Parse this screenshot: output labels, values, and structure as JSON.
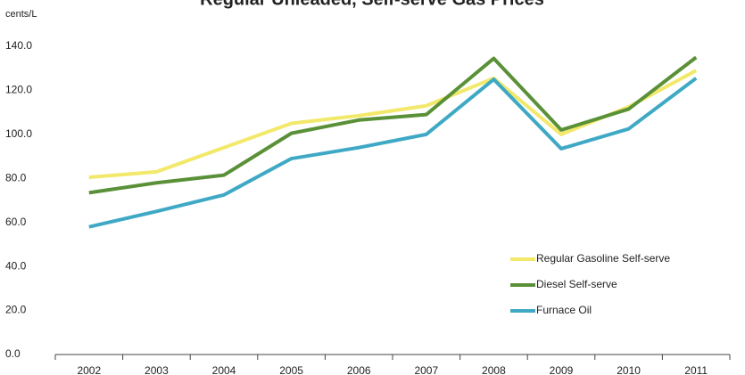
{
  "chart_data": {
    "type": "line",
    "title": "Regular Unleaded, Self-serve Gas Prices",
    "y_label": "cents/L",
    "categories": [
      "2002",
      "2003",
      "2004",
      "2005",
      "2006",
      "2007",
      "2008",
      "2009",
      "2010",
      "2011"
    ],
    "series": [
      {
        "name": "Regular Gasoline Self-serve",
        "color": "#f2e86a",
        "values": [
          80.5,
          83.0,
          94.0,
          105.0,
          108.5,
          113.0,
          125.5,
          100.0,
          112.5,
          129.0
        ]
      },
      {
        "name": "Diesel Self-serve",
        "color": "#5a9138",
        "values": [
          73.5,
          78.0,
          81.5,
          100.5,
          106.5,
          109.0,
          134.5,
          102.0,
          111.5,
          135.0
        ]
      },
      {
        "name": "Furnace Oil",
        "color": "#3fa9c5",
        "values": [
          58.0,
          65.0,
          72.5,
          89.0,
          94.0,
          100.0,
          125.0,
          93.5,
          102.5,
          125.5
        ]
      }
    ],
    "ylim": [
      0,
      140
    ],
    "yticks": [
      {
        "value": 0,
        "label": "0.0"
      },
      {
        "value": 20,
        "label": "20.0"
      },
      {
        "value": 40,
        "label": "40.0"
      },
      {
        "value": 60,
        "label": "60.0"
      },
      {
        "value": 80,
        "label": "80.0"
      },
      {
        "value": 100,
        "label": "100.0"
      },
      {
        "value": 120,
        "label": "120.0"
      },
      {
        "value": 140,
        "label": "140.0"
      }
    ],
    "grid": false,
    "legend": "lower right"
  }
}
